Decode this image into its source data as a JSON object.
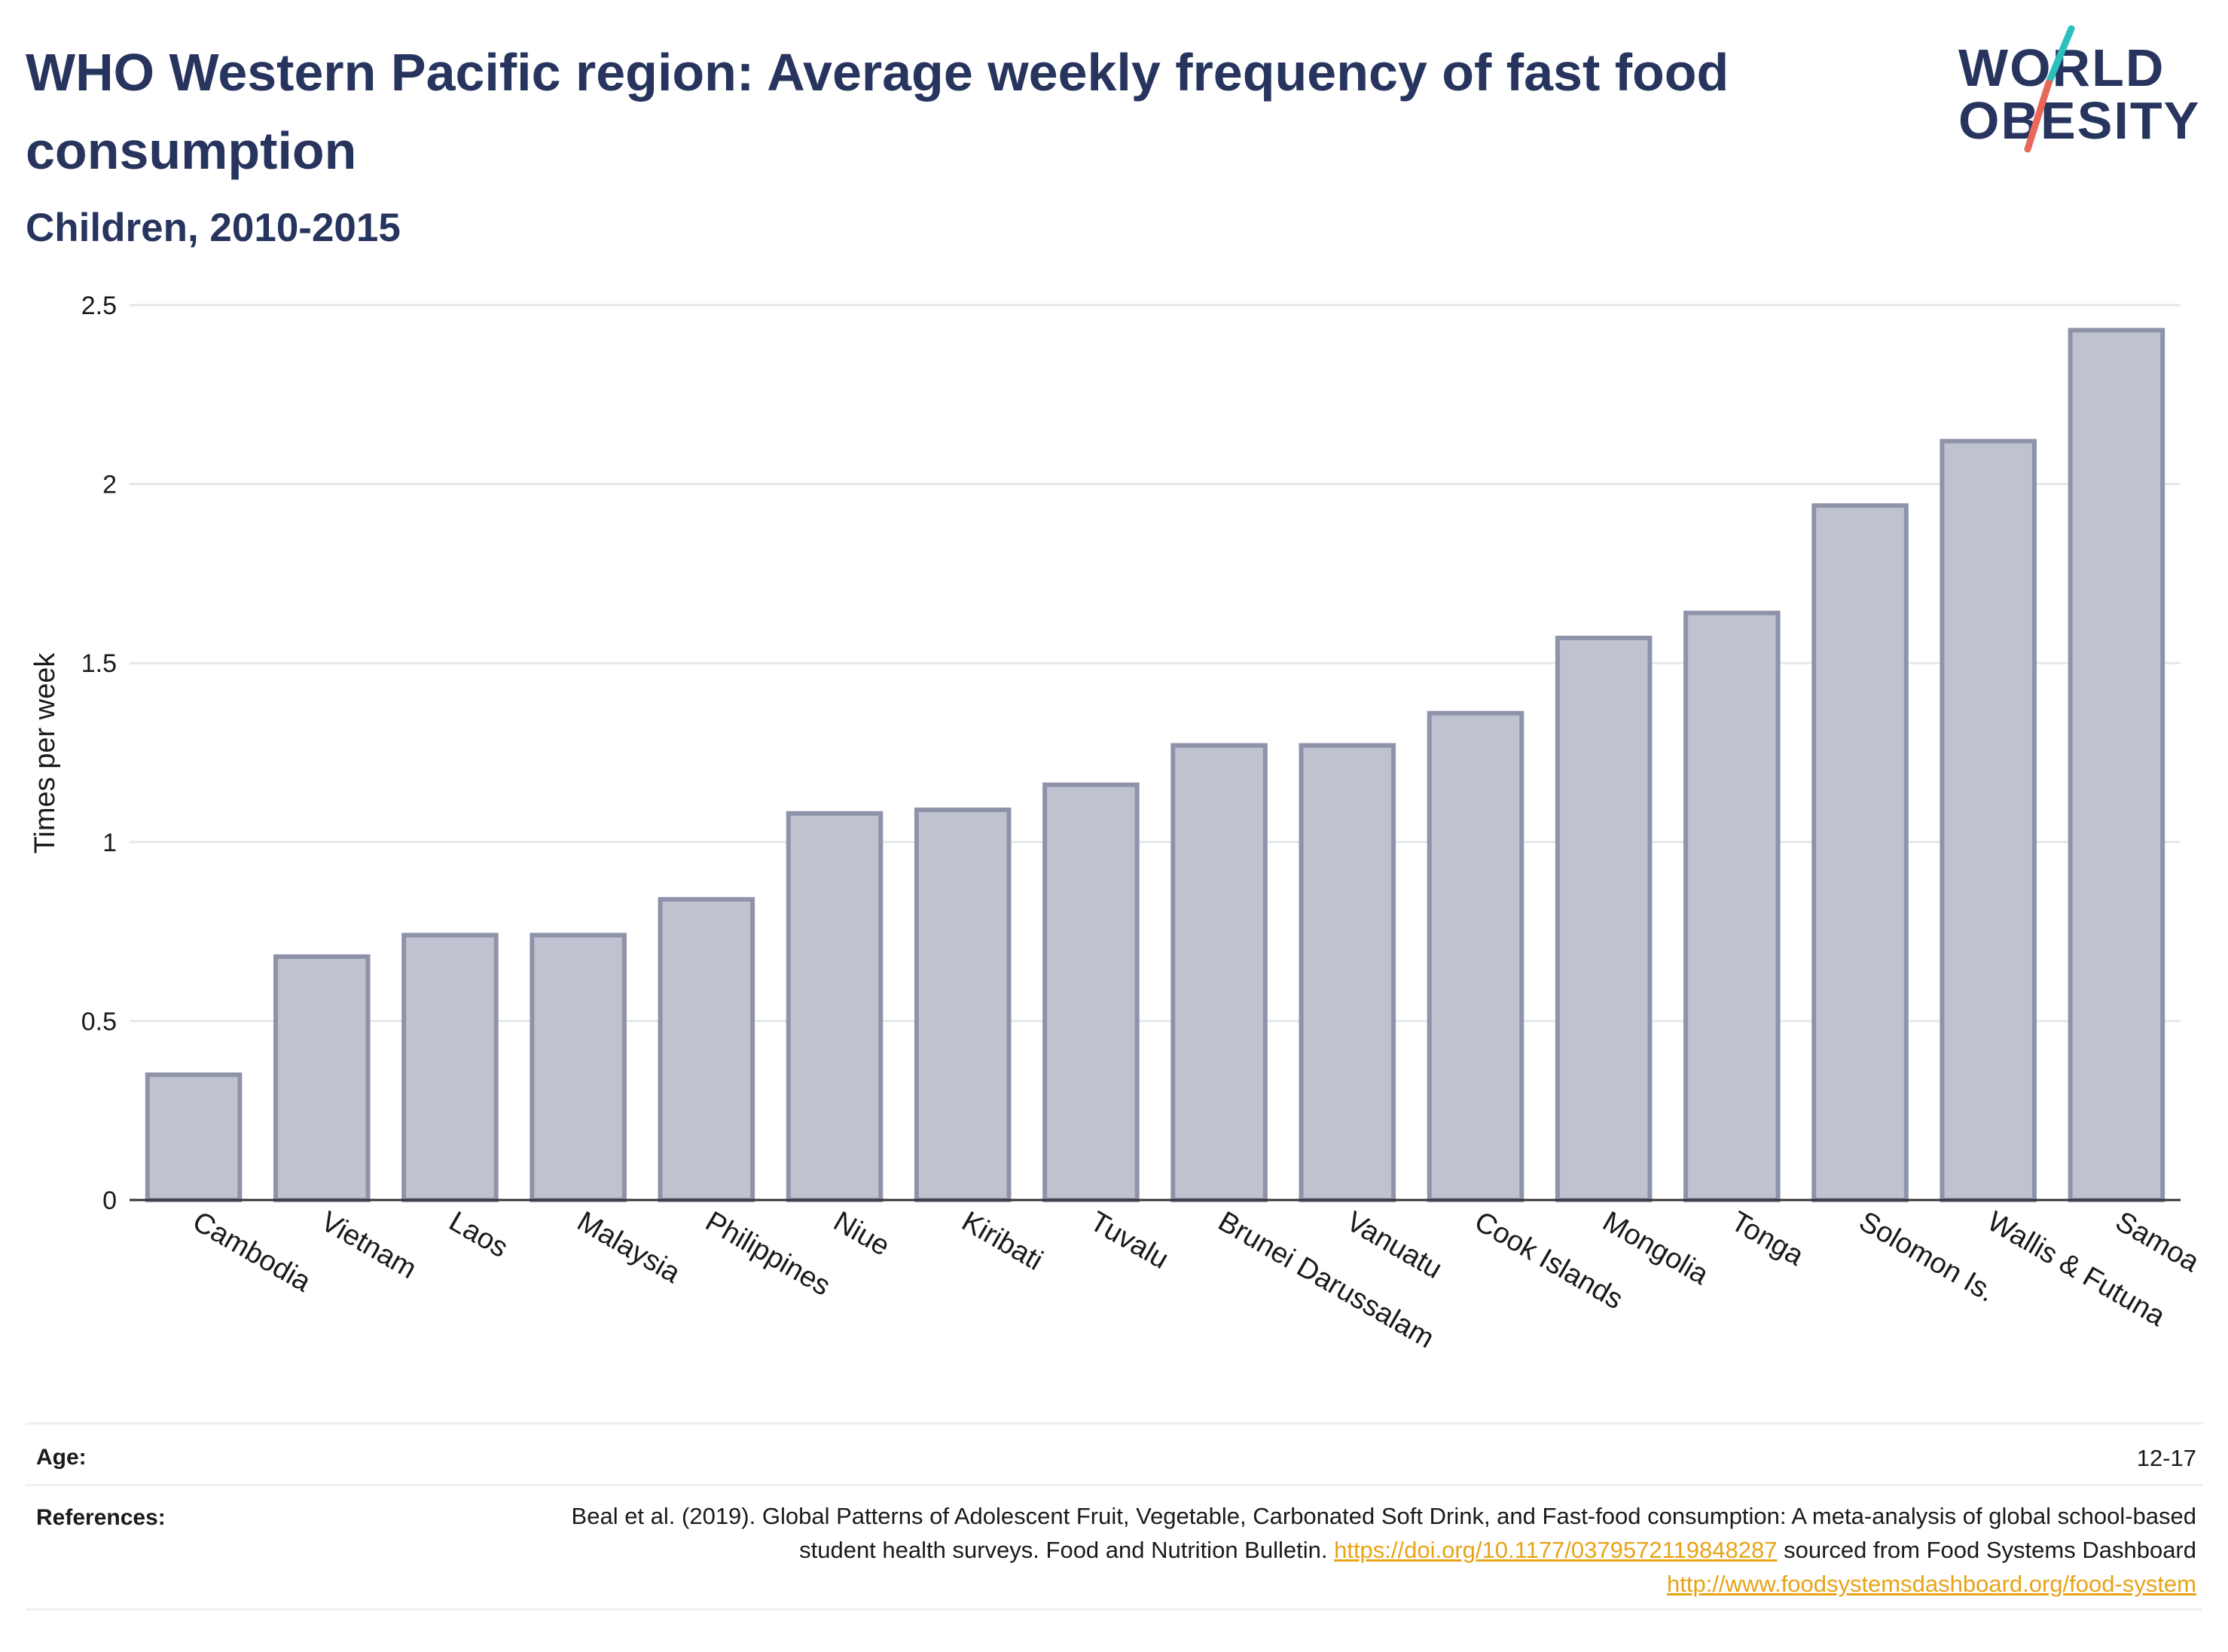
{
  "title": "WHO Western Pacific region: Average weekly frequency of fast food consumption",
  "subtitle": "Children, 2010-2015",
  "logo": {
    "line1": "WORLD",
    "line2": "OBESITY"
  },
  "colors": {
    "title": "#27345e",
    "bar_fill": "#bfc3d0",
    "bar_stroke": "#8e93aa",
    "grid": "#e6e7eb",
    "link": "#e8a317",
    "logo_teal": "#2bbfbd",
    "logo_coral": "#e8685a"
  },
  "chart_data": {
    "type": "bar",
    "categories": [
      "Cambodia",
      "Vietnam",
      "Laos",
      "Malaysia",
      "Philippines",
      "Niue",
      "Kiribati",
      "Tuvalu",
      "Brunei Darussalam",
      "Vanuatu",
      "Cook Islands",
      "Mongolia",
      "Tonga",
      "Solomon Is.",
      "Wallis & Futuna",
      "Samoa"
    ],
    "values": [
      0.35,
      0.68,
      0.74,
      0.74,
      0.84,
      1.08,
      1.09,
      1.16,
      1.27,
      1.27,
      1.36,
      1.57,
      1.64,
      1.94,
      2.12,
      2.43
    ],
    "ylabel": "Times per week",
    "ylim": [
      0,
      2.5
    ],
    "yticks": [
      "0",
      "0.5",
      "1",
      "1.5",
      "2",
      "2.5"
    ],
    "ytick_values": [
      0,
      0.5,
      1,
      1.5,
      2,
      2.5
    ],
    "grid": true
  },
  "footer": {
    "age_label": "Age:",
    "age_value": "12-17",
    "references_label": "References:",
    "ref_text_1": "Beal et al. (2019). Global Patterns of Adolescent Fruit, Vegetable, Carbonated Soft Drink, and Fast-food consumption: A meta-analysis of global school-based student health surveys. Food and Nutrition Bulletin.",
    "ref_link_1": "https://doi.org/10.1177/0379572119848287",
    "ref_text_2": "sourced from Food Systems Dashboard",
    "ref_link_2": "http://www.foodsystemsdashboard.org/food-system"
  }
}
